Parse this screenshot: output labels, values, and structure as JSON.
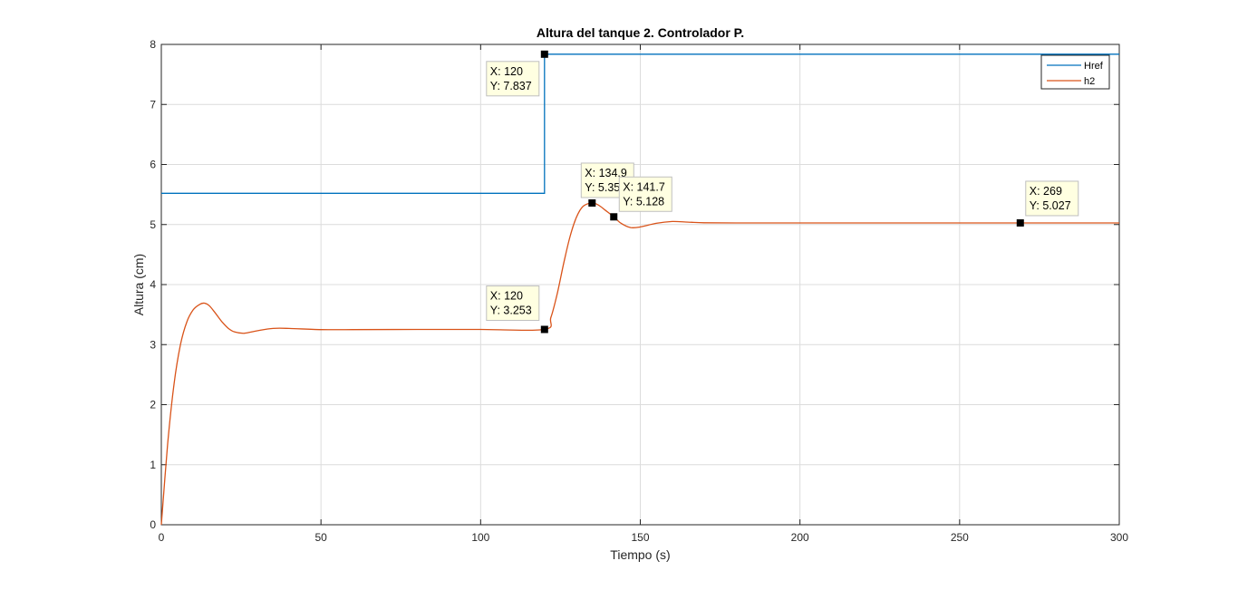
{
  "chart_data": {
    "type": "line",
    "title": "Altura del tanque 2. Controlador P.",
    "xlabel": "Tiempo (s)",
    "ylabel": "Altura (cm)",
    "xlim": [
      0,
      300
    ],
    "ylim": [
      0,
      8
    ],
    "xticks": [
      0,
      50,
      100,
      150,
      200,
      250,
      300
    ],
    "yticks": [
      0,
      1,
      2,
      3,
      4,
      5,
      6,
      7,
      8
    ],
    "grid": true,
    "legend_position": "top-right",
    "series": [
      {
        "name": "Href",
        "color": "#0072BD",
        "x": [
          0,
          120,
          120,
          300
        ],
        "y": [
          5.52,
          5.52,
          7.837,
          7.837
        ]
      },
      {
        "name": "h2",
        "color": "#D95319",
        "x": [
          0,
          2,
          4,
          6,
          8,
          10,
          12,
          13.5,
          15,
          17,
          19,
          21,
          23,
          26,
          30,
          35,
          40,
          50,
          60,
          80,
          100,
          120,
          122,
          124,
          126,
          128,
          130,
          132,
          134.9,
          137,
          139,
          141.7,
          144,
          147,
          150,
          155,
          160,
          165,
          170,
          180,
          200,
          250,
          269,
          300
        ],
        "y": [
          0,
          1.35,
          2.35,
          3.0,
          3.38,
          3.58,
          3.67,
          3.69,
          3.65,
          3.52,
          3.38,
          3.27,
          3.21,
          3.19,
          3.23,
          3.27,
          3.27,
          3.25,
          3.25,
          3.253,
          3.253,
          3.253,
          3.45,
          3.85,
          4.35,
          4.8,
          5.12,
          5.3,
          5.359,
          5.32,
          5.24,
          5.128,
          5.02,
          4.95,
          4.96,
          5.02,
          5.05,
          5.04,
          5.03,
          5.027,
          5.027,
          5.027,
          5.027,
          5.027
        ]
      }
    ],
    "datatips": [
      {
        "x": 120,
        "y": 7.837,
        "x_text": "X: 120",
        "y_text": "Y: 7.837"
      },
      {
        "x": 134.9,
        "y": 5.359,
        "x_text": "X: 134.9",
        "y_text": "Y: 5.359"
      },
      {
        "x": 141.7,
        "y": 5.128,
        "x_text": "X: 141.7",
        "y_text": "Y: 5.128"
      },
      {
        "x": 120,
        "y": 3.253,
        "x_text": "X: 120",
        "y_text": "Y: 3.253"
      },
      {
        "x": 269,
        "y": 5.027,
        "x_text": "X: 269",
        "y_text": "Y: 5.027"
      }
    ]
  }
}
